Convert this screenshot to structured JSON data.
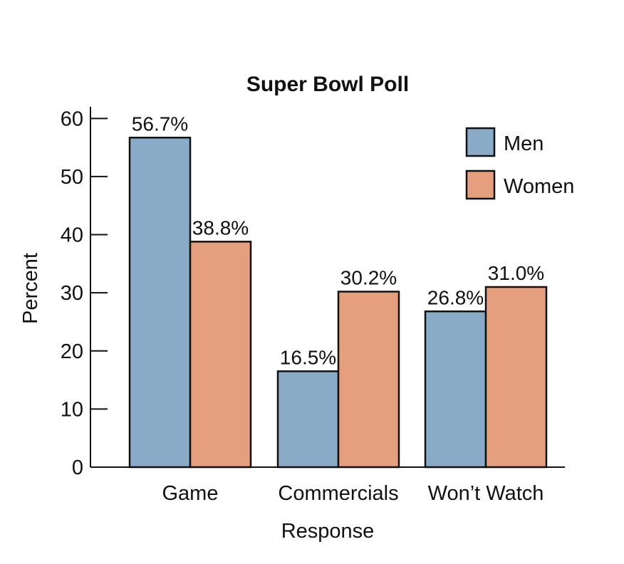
{
  "chart_data": {
    "type": "bar",
    "title": "Super Bowl Poll",
    "xlabel": "Response",
    "ylabel": "Percent",
    "categories": [
      "Game",
      "Commercials",
      "Won’t Watch"
    ],
    "series": [
      {
        "name": "Men",
        "color": "#8aabc7",
        "values": [
          56.7,
          16.5,
          26.8
        ],
        "labels": [
          "56.7%",
          "16.5%",
          "26.8%"
        ]
      },
      {
        "name": "Women",
        "color": "#e4a07e",
        "values": [
          38.8,
          30.2,
          31.0
        ],
        "labels": [
          "38.8%",
          "30.2%",
          "31.0%"
        ]
      }
    ],
    "ylim": [
      0,
      62
    ],
    "yticks": [
      0,
      10,
      20,
      30,
      40,
      50,
      60
    ],
    "grid": false,
    "legend": "top-right"
  }
}
